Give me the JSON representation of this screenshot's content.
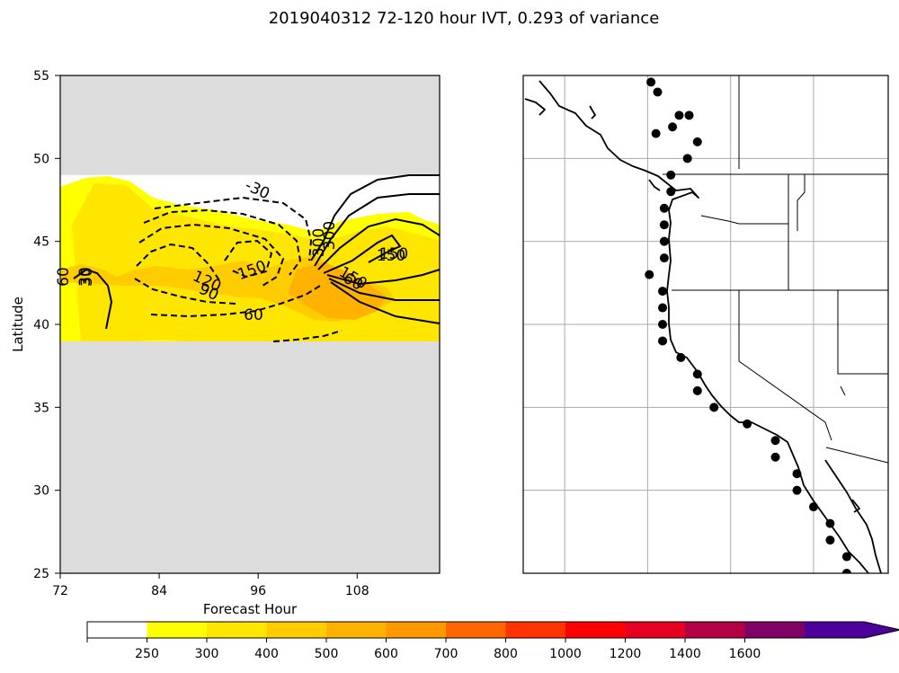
{
  "figure": {
    "title": "2019040312 72-120 hour IVT, 0.293 of variance"
  },
  "chart_data": [
    {
      "type": "contour",
      "xlabel": "Forecast Hour",
      "ylabel": "Latitude",
      "xlim": [
        72,
        118
      ],
      "ylim": [
        25,
        55
      ],
      "xticks": [
        "72",
        "84",
        "96",
        "108"
      ],
      "yticks": [
        "25",
        "30",
        "35",
        "40",
        "45",
        "50",
        "55"
      ],
      "data_lat_range": [
        39,
        49
      ],
      "missing_color": "#dcdcdc",
      "contour_labels": [
        "30",
        "150",
        "60",
        "60",
        "30",
        "120",
        "90",
        "150",
        "60",
        "-30",
        "300",
        "300",
        "150",
        "150"
      ]
    },
    {
      "type": "map",
      "stations": [
        [
          -124.8,
          54.6
        ],
        [
          -124.4,
          54.0
        ],
        [
          -122.5,
          52.6
        ],
        [
          -123.1,
          52.6
        ],
        [
          -123.5,
          51.9
        ],
        [
          -124.5,
          51.5
        ],
        [
          -122.0,
          51.0
        ],
        [
          -122.6,
          50.0
        ],
        [
          -123.6,
          49.0
        ],
        [
          -123.6,
          48.0
        ],
        [
          -124.0,
          47.0
        ],
        [
          -124.0,
          46.0
        ],
        [
          -124.0,
          45.0
        ],
        [
          -124.0,
          44.0
        ],
        [
          -124.9,
          43.0
        ],
        [
          -124.1,
          42.0
        ],
        [
          -124.1,
          41.0
        ],
        [
          -124.1,
          40.0
        ],
        [
          -124.1,
          39.0
        ],
        [
          -123.0,
          38.0
        ],
        [
          -122.0,
          37.0
        ],
        [
          -122.0,
          36.0
        ],
        [
          -121.0,
          35.0
        ],
        [
          -119.0,
          34.0
        ],
        [
          -117.3,
          33.0
        ],
        [
          -117.3,
          32.0
        ],
        [
          -116.0,
          31.0
        ],
        [
          -116.0,
          30.0
        ],
        [
          -115.0,
          29.0
        ],
        [
          -114.0,
          28.0
        ],
        [
          -114.0,
          27.0
        ],
        [
          -113.0,
          26.0
        ],
        [
          -113.0,
          25.0
        ]
      ]
    }
  ],
  "colorbar": {
    "ticks": [
      "250",
      "300",
      "400",
      "500",
      "600",
      "700",
      "800",
      "1000",
      "1200",
      "1400",
      "1600"
    ],
    "colors": [
      "#ffffff",
      "#ffff00",
      "#ffe600",
      "#ffcc00",
      "#ffb300",
      "#ff9900",
      "#ff6600",
      "#ff3300",
      "#ff0000",
      "#e60022",
      "#b30044",
      "#800066",
      "#4d0099"
    ]
  }
}
